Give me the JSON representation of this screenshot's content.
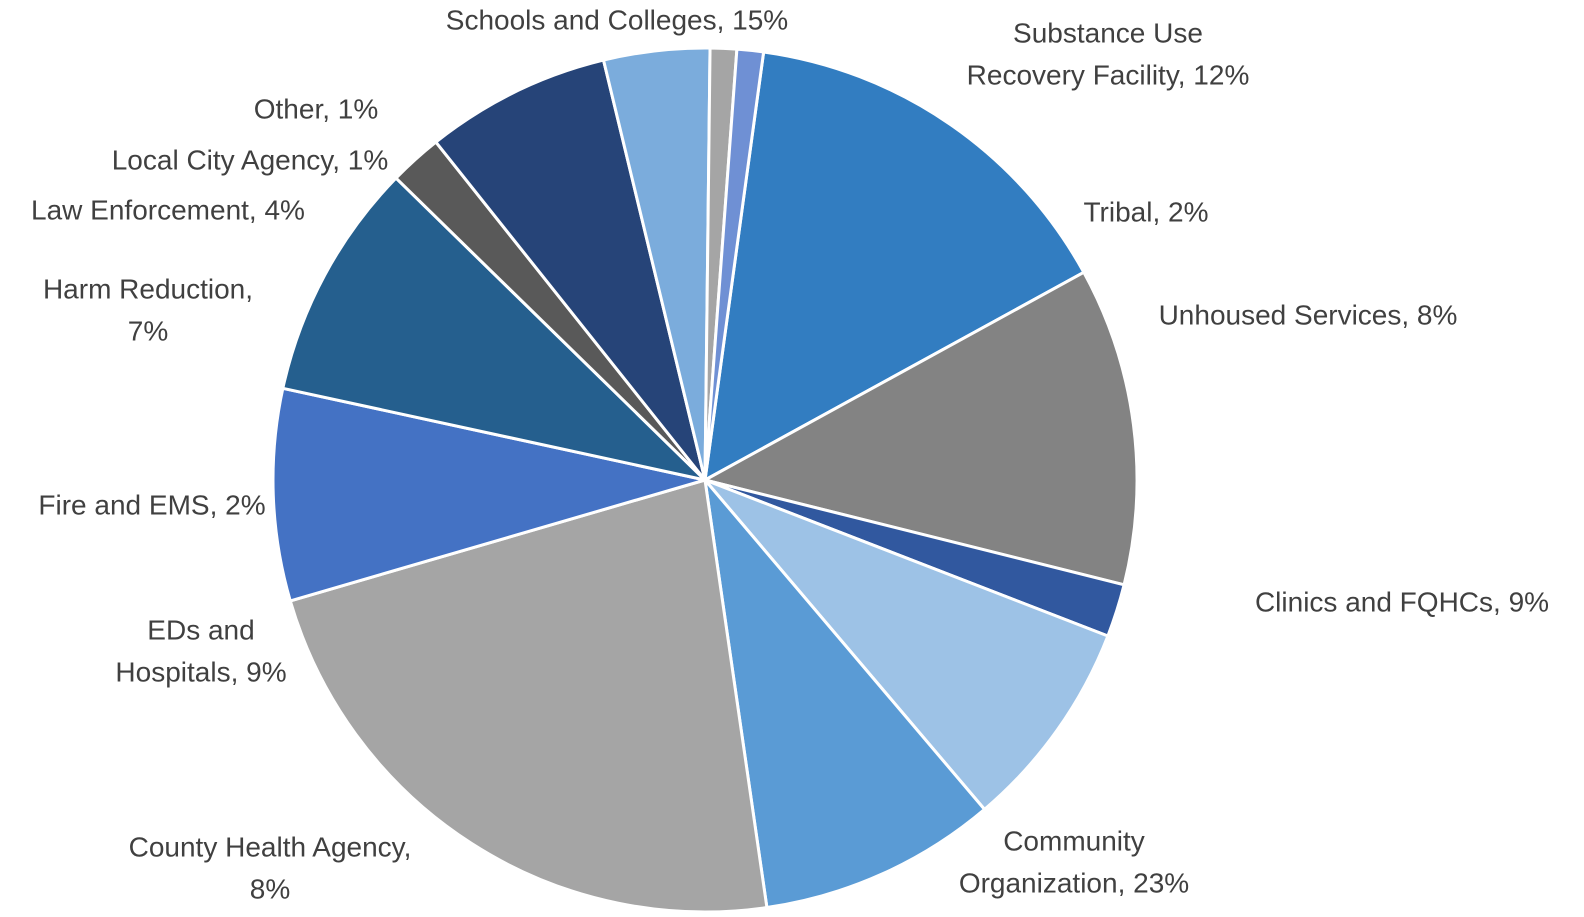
{
  "chart_data": {
    "type": "pie",
    "title": "",
    "slices": [
      {
        "name": "Schools and Colleges",
        "value": 15,
        "label_lines": [
          "Schools and Colleges, 15%"
        ],
        "color": "#327DC1"
      },
      {
        "name": "Substance Use Recovery Facility",
        "value": 12,
        "label_lines": [
          "Substance Use",
          "Recovery Facility, 12%"
        ],
        "color": "#838383"
      },
      {
        "name": "Tribal",
        "value": 2,
        "label_lines": [
          "Tribal, 2%"
        ],
        "color": "#31589F"
      },
      {
        "name": "Unhoused Services",
        "value": 8,
        "label_lines": [
          "Unhoused Services, 8%"
        ],
        "color": "#9DC2E6"
      },
      {
        "name": "Clinics and FQHCs",
        "value": 9,
        "label_lines": [
          "Clinics and FQHCs, 9%"
        ],
        "color": "#5A9BD5"
      },
      {
        "name": "Community Organization",
        "value": 23,
        "label_lines": [
          "Community",
          "Organization, 23%"
        ],
        "color": "#A5A5A5"
      },
      {
        "name": "County Health Agency",
        "value": 8,
        "label_lines": [
          "County Health Agency,",
          "8%"
        ],
        "color": "#4472C4"
      },
      {
        "name": "EDs and Hospitals",
        "value": 9,
        "label_lines": [
          "EDs and",
          "Hospitals, 9%"
        ],
        "color": "#255F8E"
      },
      {
        "name": "Fire and EMS",
        "value": 2,
        "label_lines": [
          "Fire and EMS, 2%"
        ],
        "color": "#595959"
      },
      {
        "name": "Harm Reduction",
        "value": 7,
        "label_lines": [
          "Harm Reduction,",
          "7%"
        ],
        "color": "#264478"
      },
      {
        "name": "Law Enforcement",
        "value": 4,
        "label_lines": [
          "Law Enforcement, 4%"
        ],
        "color": "#7BACDC"
      },
      {
        "name": "Local City Agency",
        "value": 1,
        "label_lines": [
          "Local City Agency, 1%"
        ],
        "color": "#A5A5A5"
      },
      {
        "name": "Other",
        "value": 1,
        "label_lines": [
          "Other, 1%"
        ],
        "color": "#6F90D4"
      }
    ]
  }
}
